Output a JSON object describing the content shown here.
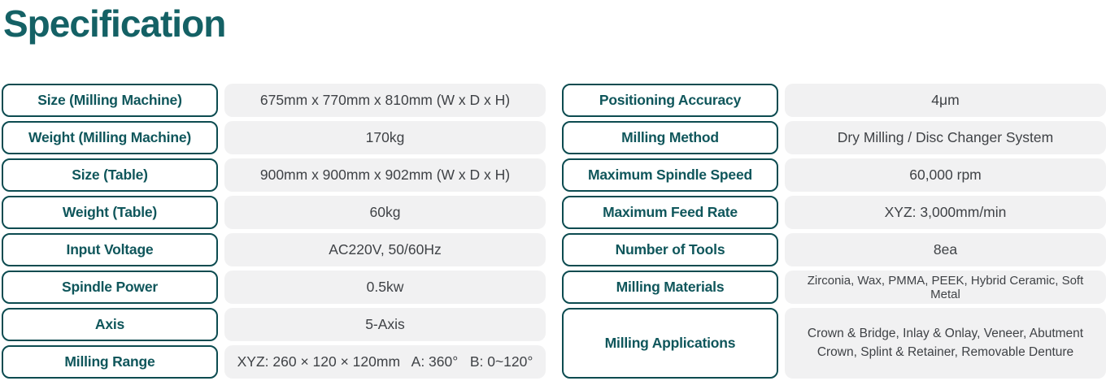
{
  "page": {
    "title": "Specification"
  },
  "colors": {
    "title": "#146165",
    "label_text": "#0f565b",
    "label_border": "#0c4b50",
    "value_text": "#3f4246",
    "value_background": "#f1f1f2",
    "page_background": "#ffffff"
  },
  "spec_table": {
    "left_rows": [
      {
        "label": "Size (Milling Machine)",
        "value": "675mm x 770mm x 810mm (W x D x H)"
      },
      {
        "label": "Weight (Milling Machine)",
        "value": "170kg"
      },
      {
        "label": "Size (Table)",
        "value": "900mm x 900mm x 902mm (W x D x H)"
      },
      {
        "label": "Weight (Table)",
        "value": "60kg"
      },
      {
        "label": "Input Voltage",
        "value": "AC220V, 50/60Hz"
      },
      {
        "label": "Spindle Power",
        "value": "0.5kw"
      },
      {
        "label": "Axis",
        "value": "5-Axis"
      },
      {
        "label": "Milling Range",
        "value": "XYZ: 260 × 120 × 120mm   A: 360°   B: 0~120°"
      }
    ],
    "right_rows": [
      {
        "label": "Positioning Accuracy",
        "value": "4μm"
      },
      {
        "label": "Milling Method",
        "value": "Dry Milling / Disc Changer System"
      },
      {
        "label": "Maximum Spindle Speed",
        "value": "60,000 rpm"
      },
      {
        "label": "Maximum Feed Rate",
        "value": "XYZ: 3,000mm/min"
      },
      {
        "label": "Number of Tools",
        "value": "8ea"
      },
      {
        "label": "Milling Materials",
        "value": "Zirconia, Wax, PMMA, PEEK, Hybrid Ceramic, Soft Metal",
        "small": true
      },
      {
        "label": "Milling Applications",
        "value": "Crown & Bridge, Inlay & Onlay, Veneer, Abutment Crown, Splint & Retainer, Removable Denture",
        "tall": true
      }
    ]
  }
}
